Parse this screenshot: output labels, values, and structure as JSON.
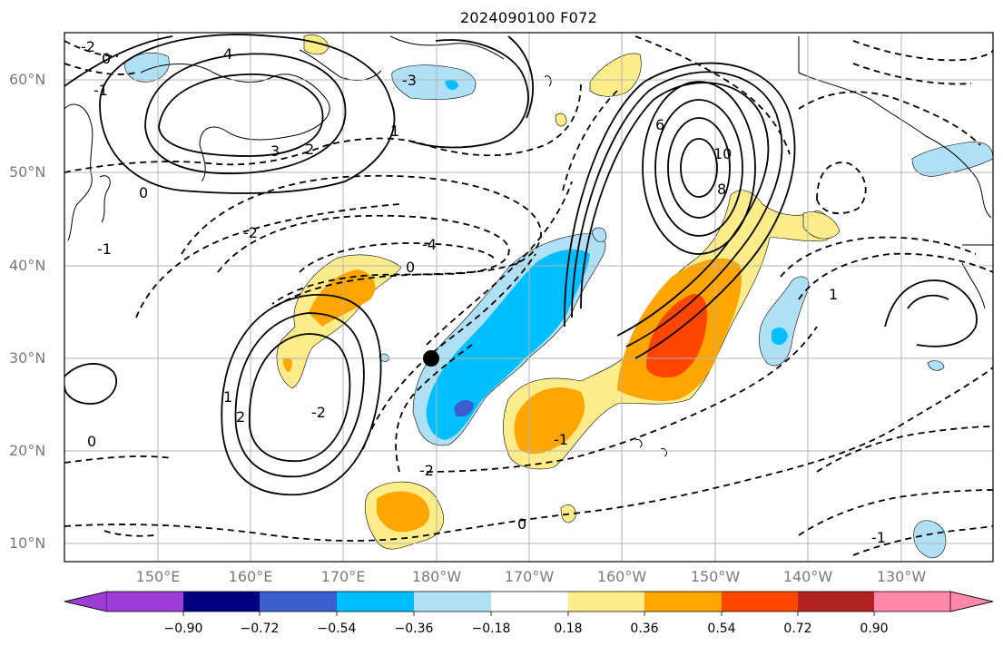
{
  "title": "2024090100 F072",
  "axes": {
    "lat_labels": [
      "60°N",
      "50°N",
      "40°N",
      "30°N",
      "20°N",
      "10°N"
    ],
    "lon_labels": [
      "150°E",
      "160°E",
      "170°E",
      "180°W",
      "170°W",
      "160°W",
      "150°W",
      "140°W",
      "130°W"
    ]
  },
  "colorbar": {
    "ticks": [
      "−0.90",
      "−0.72",
      "−0.54",
      "−0.36",
      "−0.18",
      "0.18",
      "0.36",
      "0.54",
      "0.72",
      "0.90"
    ],
    "colors": [
      "#9b3dd6",
      "#000080",
      "#3a5fcd",
      "#00bfff",
      "#b0e0f5",
      "#ffffff",
      "#fcec8a",
      "#ffa500",
      "#ff4500",
      "#b22222",
      "#ff88aa"
    ]
  },
  "contour_labels": [
    "-2",
    "0",
    "4",
    "-1",
    "3",
    "2",
    "-3",
    "1",
    "-4",
    "6",
    "10",
    "8",
    "-2",
    "0",
    "-1",
    "0",
    "1",
    "2",
    "-2",
    "0",
    "-1",
    "0",
    "-2",
    "1",
    "-1"
  ],
  "marker": {
    "label": "storm-center"
  }
}
